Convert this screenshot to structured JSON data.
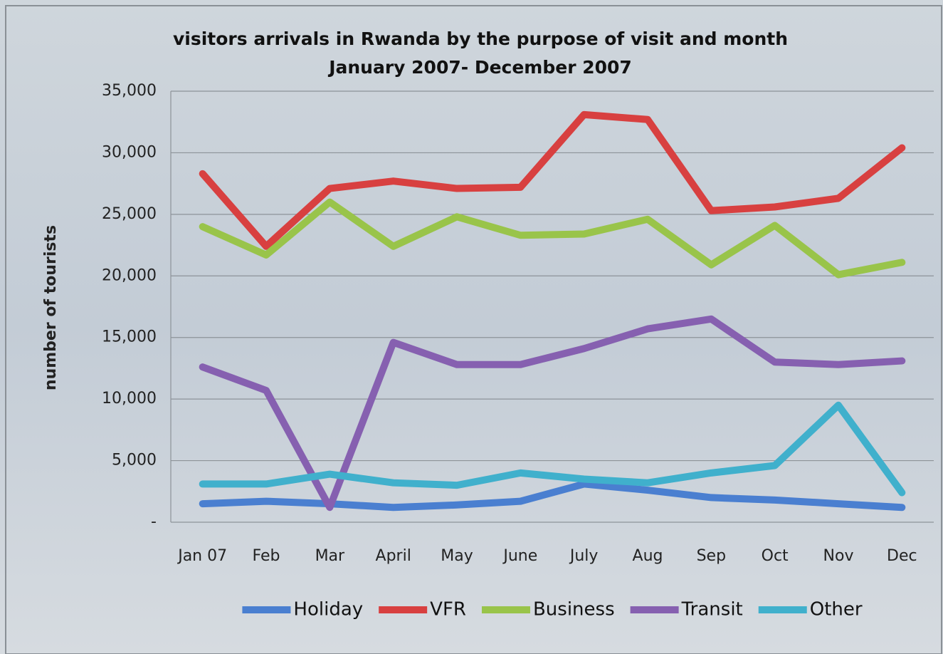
{
  "chart_data": {
    "type": "line",
    "title": "visitors arrivals in Rwanda by the purpose of visit and month",
    "subtitle": "January 2007- December 2007",
    "y_label": "number of tourists",
    "categories": [
      "Jan 07",
      "Feb",
      "Mar",
      "April",
      "May",
      "June",
      "July",
      "Aug",
      "Sep",
      "Oct",
      "Nov",
      "Dec"
    ],
    "series": [
      {
        "name": "Holiday",
        "color": "#4a7fd0",
        "values": [
          1500,
          1700,
          1500,
          1200,
          1400,
          1700,
          3100,
          2600,
          2000,
          1800,
          1500,
          1200
        ]
      },
      {
        "name": "VFR",
        "color": "#d84040",
        "values": [
          28300,
          22400,
          27100,
          27700,
          27100,
          27200,
          33100,
          32700,
          25300,
          25600,
          26300,
          30400
        ]
      },
      {
        "name": "Business",
        "color": "#99c44a",
        "values": [
          24000,
          21700,
          26000,
          22400,
          24800,
          23300,
          23400,
          24600,
          20900,
          24100,
          20100,
          21100
        ]
      },
      {
        "name": "Transit",
        "color": "#8660b0",
        "values": [
          12600,
          10700,
          1200,
          14600,
          12800,
          12800,
          14100,
          15700,
          16500,
          13000,
          12800,
          13100
        ]
      },
      {
        "name": "Other",
        "color": "#40b0cc",
        "values": [
          3100,
          3100,
          3900,
          3200,
          3000,
          4000,
          3500,
          3200,
          4000,
          4600,
          9500,
          2400
        ]
      }
    ],
    "ylim": [
      0,
      35000
    ],
    "yticks": [
      {
        "value": 0,
        "label": "-"
      },
      {
        "value": 5000,
        "label": "5,000"
      },
      {
        "value": 10000,
        "label": "10,000"
      },
      {
        "value": 15000,
        "label": "15,000"
      },
      {
        "value": 20000,
        "label": "20,000"
      },
      {
        "value": 25000,
        "label": "25,000"
      },
      {
        "value": 30000,
        "label": "30,000"
      },
      {
        "value": 35000,
        "label": "35,000"
      }
    ],
    "grid": true,
    "legend": "bottom"
  }
}
